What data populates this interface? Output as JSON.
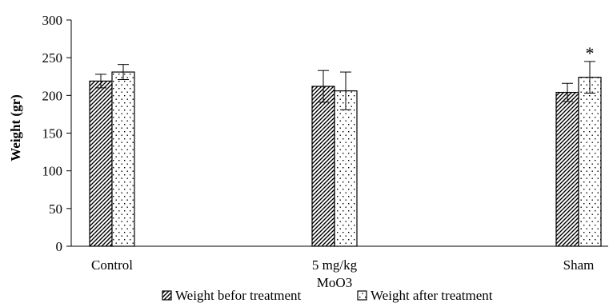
{
  "chart_data": {
    "type": "bar",
    "ylabel": "Weight (gr)",
    "ylim": [
      0,
      300
    ],
    "yticks": [
      "0",
      "50",
      "100",
      "150",
      "200",
      "250",
      "300"
    ],
    "categories": [
      "Control",
      "5 mg/kg MoO3",
      "Sham"
    ],
    "category_lines": [
      [
        "Control"
      ],
      [
        "5 mg/kg",
        "MoO3"
      ],
      [
        "Sham"
      ]
    ],
    "series": [
      {
        "name": "Weight befor treatment",
        "pattern": "diagonal-hatch",
        "values": [
          219,
          212,
          204
        ],
        "errors": [
          9,
          21,
          12
        ]
      },
      {
        "name": "Weight after treatment",
        "pattern": "dots",
        "values": [
          231,
          206,
          224
        ],
        "errors": [
          10,
          25,
          21
        ]
      }
    ],
    "annotations": [
      {
        "text": "*",
        "category": "Sham",
        "series": "Weight after treatment"
      }
    ],
    "legend_position": "bottom",
    "grid": false,
    "colors": {
      "bar_fill": "#ffffff",
      "stroke": "#000000"
    }
  }
}
